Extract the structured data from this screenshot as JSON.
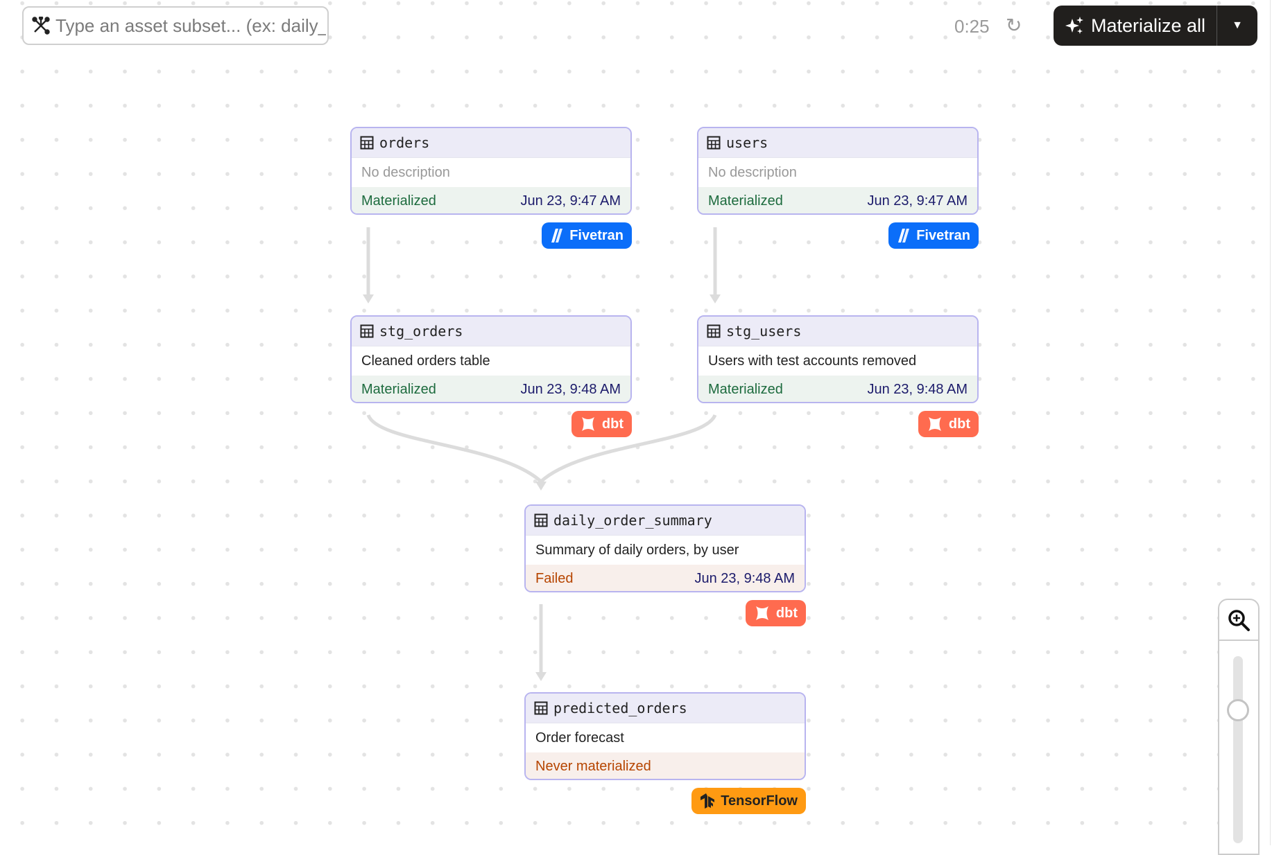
{
  "toolbar": {
    "search_placeholder": "Type an asset subset... (ex: daily_order_summary+)",
    "search_icon": "asset-selection-icon",
    "timer": "0:25",
    "refresh_icon": "refresh-icon",
    "materialize_label": "Materialize all",
    "materialize_icon": "sparkle-icon",
    "dropdown_icon": "caret-down-icon"
  },
  "nodes": [
    {
      "name": "orders",
      "description": "No description",
      "status": "Materialized",
      "time": "Jun 23, 9:47 AM",
      "kind": "Fivetran"
    },
    {
      "name": "users",
      "description": "No description",
      "status": "Materialized",
      "time": "Jun 23, 9:47 AM",
      "kind": "Fivetran"
    },
    {
      "name": "stg_orders",
      "description": "Cleaned orders table",
      "status": "Materialized",
      "time": "Jun 23, 9:48 AM",
      "kind": "dbt"
    },
    {
      "name": "stg_users",
      "description": "Users with test accounts removed",
      "status": "Materialized",
      "time": "Jun 23, 9:48 AM",
      "kind": "dbt"
    },
    {
      "name": "daily_order_summary",
      "description": "Summary of daily orders, by user",
      "status": "Failed",
      "time": "Jun 23, 9:48 AM",
      "kind": "dbt"
    },
    {
      "name": "predicted_orders",
      "description": "Order forecast",
      "status": "Never materialized",
      "time": "",
      "kind": "TensorFlow"
    }
  ],
  "edges": [
    [
      "orders",
      "stg_orders"
    ],
    [
      "users",
      "stg_users"
    ],
    [
      "stg_orders",
      "daily_order_summary"
    ],
    [
      "stg_users",
      "daily_order_summary"
    ],
    [
      "daily_order_summary",
      "predicted_orders"
    ]
  ],
  "colors": {
    "fivetran": "#0b6ef9",
    "dbt": "#ff6b4f",
    "tensorflow": "#ff9a12",
    "materialized": "#1d6b3e",
    "failed": "#b64500",
    "node_border": "#b8b4ef"
  },
  "zoom": {
    "icon": "zoom-in-icon",
    "slider_fraction_from_top": 0.29
  }
}
